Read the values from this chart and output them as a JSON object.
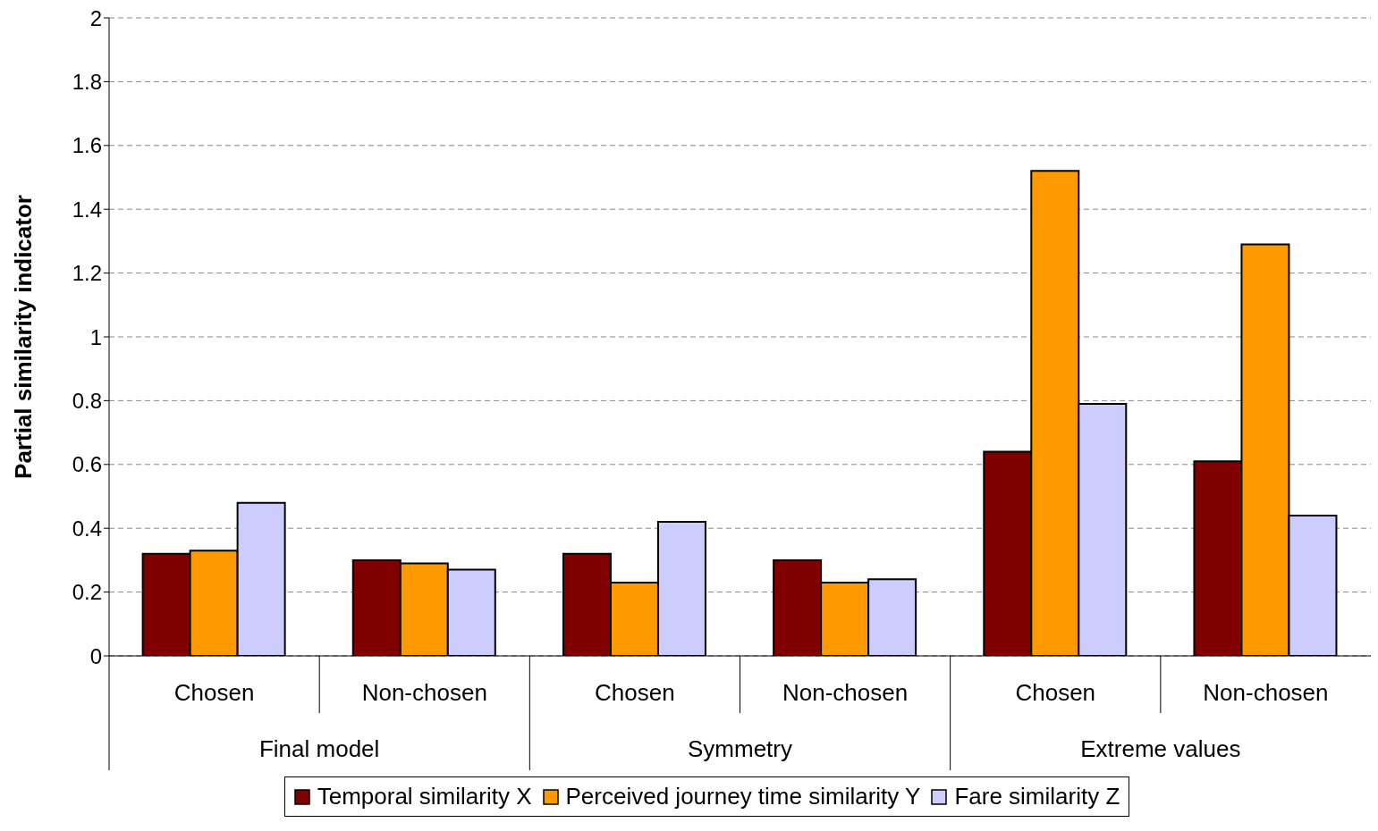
{
  "chart_data": {
    "type": "bar",
    "ylabel": "Partial similarity indicator",
    "categories": [
      "Chosen",
      "Non-chosen",
      "Chosen",
      "Non-chosen",
      "Chosen",
      "Non-chosen"
    ],
    "annotations": [
      "Final model",
      "Symmetry",
      "Extreme values"
    ],
    "series": [
      {
        "name": "Temporal similarity X",
        "color": "#800000",
        "values": [
          0.32,
          0.3,
          0.32,
          0.3,
          0.64,
          0.61
        ]
      },
      {
        "name": "Perceived journey time similarity Y",
        "color": "#ff9900",
        "values": [
          0.33,
          0.29,
          0.23,
          0.23,
          1.52,
          1.29
        ]
      },
      {
        "name": "Fare similarity Z",
        "color": "#ccccff",
        "values": [
          0.48,
          0.27,
          0.42,
          0.24,
          0.79,
          0.44
        ]
      }
    ],
    "ylim": [
      0,
      2
    ],
    "yticks": [
      0,
      0.2,
      0.4,
      0.6,
      0.8,
      1,
      1.2,
      1.4,
      1.6,
      1.8,
      2
    ],
    "grid": "y",
    "legend": "bottom"
  }
}
